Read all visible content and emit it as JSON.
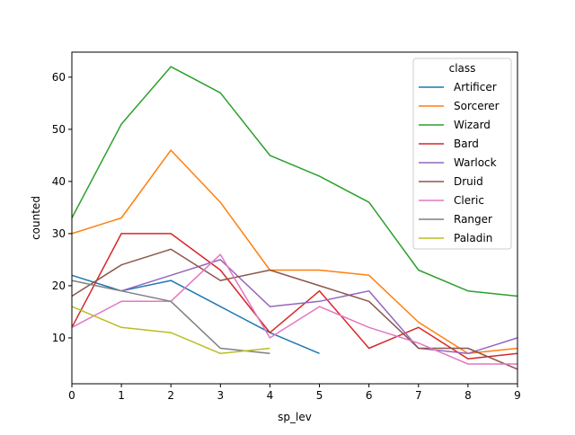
{
  "chart_data": {
    "type": "line",
    "title": "",
    "xlabel": "sp_lev",
    "ylabel": "counted",
    "xlim": [
      0,
      9
    ],
    "ylim": [
      1.2,
      64.8
    ],
    "xticks": [
      0,
      1,
      2,
      3,
      4,
      5,
      6,
      7,
      8,
      9
    ],
    "yticks": [
      10,
      20,
      30,
      40,
      50,
      60
    ],
    "grid": false,
    "legend": {
      "title": "class",
      "position": "top-right"
    },
    "series": [
      {
        "name": "Artificer",
        "color": "#1f77b4",
        "x": [
          0,
          1,
          2,
          3,
          4,
          5
        ],
        "values": [
          22,
          19,
          21,
          16,
          11,
          7
        ]
      },
      {
        "name": "Sorcerer",
        "color": "#ff7f0e",
        "x": [
          0,
          1,
          2,
          3,
          4,
          5,
          6,
          7,
          8,
          9
        ],
        "values": [
          30,
          33,
          46,
          36,
          23,
          23,
          22,
          13,
          7,
          8
        ]
      },
      {
        "name": "Wizard",
        "color": "#2ca02c",
        "x": [
          0,
          1,
          2,
          3,
          4,
          5,
          6,
          7,
          8,
          9
        ],
        "values": [
          33,
          51,
          62,
          57,
          45,
          41,
          36,
          23,
          19,
          18
        ]
      },
      {
        "name": "Bard",
        "color": "#d62728",
        "x": [
          0,
          1,
          2,
          3,
          4,
          5,
          6,
          7,
          8,
          9
        ],
        "values": [
          12,
          30,
          30,
          23,
          11,
          19,
          8,
          12,
          6,
          7
        ]
      },
      {
        "name": "Warlock",
        "color": "#9467bd",
        "x": [
          1,
          2,
          3,
          4,
          5,
          6,
          7,
          8,
          9
        ],
        "values": [
          19,
          22,
          25,
          16,
          17,
          19,
          8,
          7,
          10
        ]
      },
      {
        "name": "Druid",
        "color": "#8c564b",
        "x": [
          0,
          1,
          2,
          3,
          4,
          5,
          6,
          7,
          8,
          9
        ],
        "values": [
          18,
          24,
          27,
          21,
          23,
          20,
          17,
          8,
          8,
          4
        ]
      },
      {
        "name": "Cleric",
        "color": "#e377c2",
        "x": [
          0,
          1,
          2,
          3,
          4,
          5,
          6,
          7,
          8,
          9
        ],
        "values": [
          12,
          17,
          17,
          26,
          10,
          16,
          12,
          9,
          5,
          5
        ]
      },
      {
        "name": "Ranger",
        "color": "#7f7f7f",
        "x": [
          0,
          1,
          2,
          3,
          4
        ],
        "values": [
          21,
          19,
          17,
          8,
          7
        ]
      },
      {
        "name": "Paladin",
        "color": "#bcbd22",
        "x": [
          0,
          1,
          2,
          3,
          4
        ],
        "values": [
          16,
          12,
          11,
          7,
          8
        ]
      }
    ]
  }
}
